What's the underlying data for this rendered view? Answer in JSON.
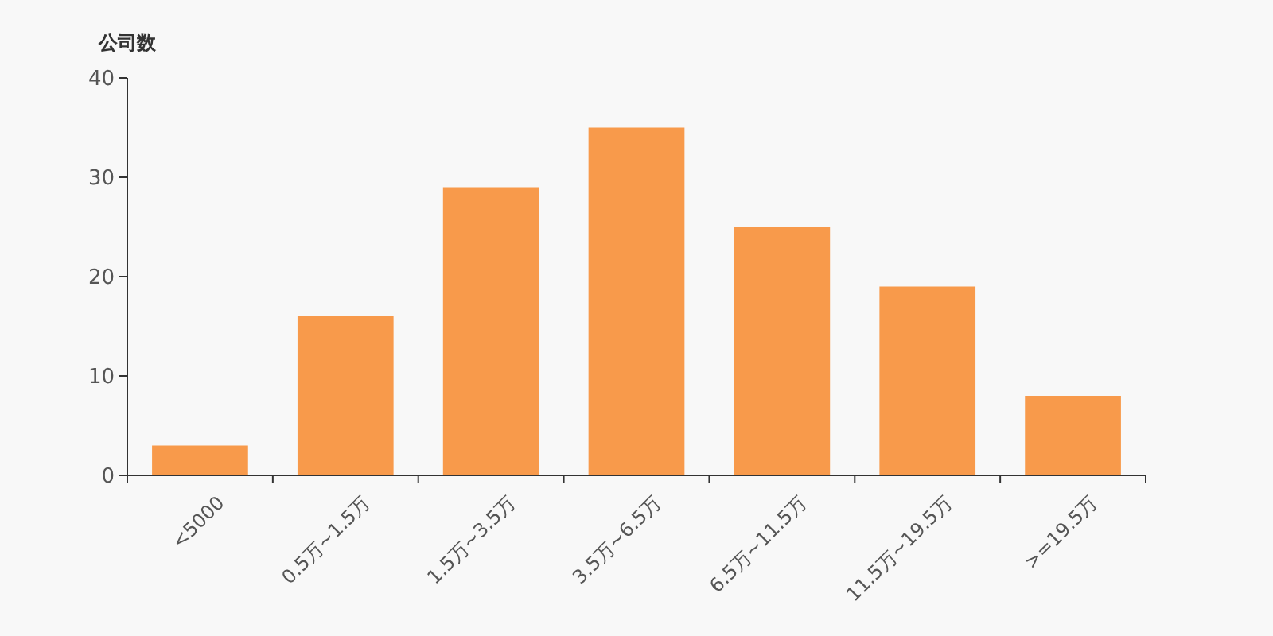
{
  "chart_data": {
    "type": "bar",
    "ylabel": "公司数",
    "categories": [
      "<5000",
      "0.5万~1.5万",
      "1.5万~3.5万",
      "3.5万~6.5万",
      "6.5万~11.5万",
      "11.5万~19.5万",
      ">=19.5万"
    ],
    "values": [
      3,
      16,
      29,
      35,
      25,
      19,
      8
    ],
    "color": "#f89a4b",
    "ylim": [
      0,
      40
    ],
    "yticks": [
      0,
      10,
      20,
      30,
      40
    ],
    "grid": false
  }
}
